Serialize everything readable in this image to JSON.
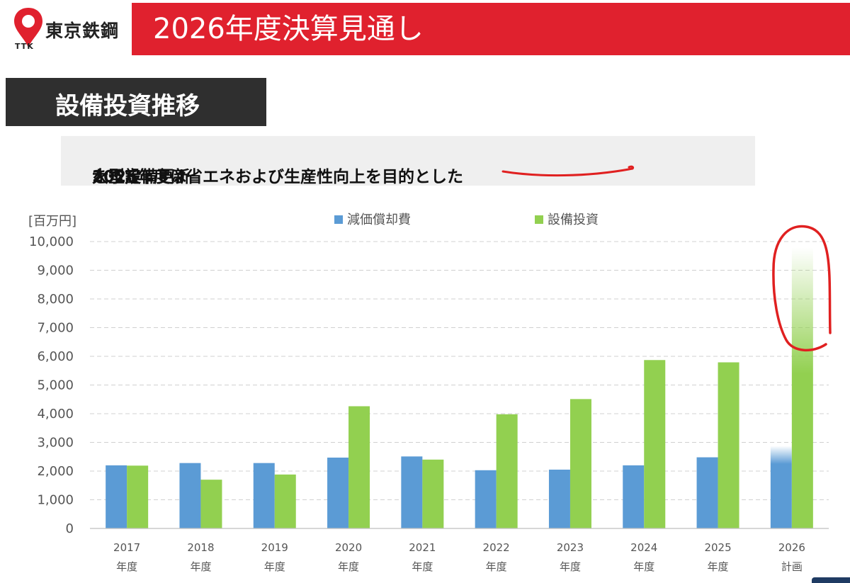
{
  "header": {
    "company_name": "東京鉄鋼",
    "company_abbr": "TTK",
    "title": "2026年度決算見通し"
  },
  "section": {
    "tag": "設備投資推移"
  },
  "callout": {
    "text_before": "2026年度は省エネおよび生産性向上を目的とした",
    "text_emphasis": "大型設備更新",
    "text_after": "を予定"
  },
  "colors": {
    "brand_red": "#e0212e",
    "depreciation_blue": "#5b9bd5",
    "capex_green": "#92d050",
    "annotation_red": "#e02020"
  },
  "chart_data": {
    "type": "bar",
    "ylabel": "[百万円]",
    "ylim": [
      0,
      10000
    ],
    "yticks": [
      "0",
      "1,000",
      "2,000",
      "3,000",
      "4,000",
      "5,000",
      "6,000",
      "7,000",
      "8,000",
      "9,000",
      "10,000"
    ],
    "grid": true,
    "legend_position": "top",
    "categories": [
      {
        "year": "2017",
        "sub": "年度"
      },
      {
        "year": "2018",
        "sub": "年度"
      },
      {
        "year": "2019",
        "sub": "年度"
      },
      {
        "year": "2020",
        "sub": "年度"
      },
      {
        "year": "2021",
        "sub": "年度"
      },
      {
        "year": "2022",
        "sub": "年度"
      },
      {
        "year": "2023",
        "sub": "年度"
      },
      {
        "year": "2024",
        "sub": "年度"
      },
      {
        "year": "2025",
        "sub": "年度"
      },
      {
        "year": "2026",
        "sub": "計画"
      }
    ],
    "series": [
      {
        "name": "減価償却費",
        "color": "#5b9bd5",
        "values": [
          2200,
          2280,
          2280,
          2470,
          2510,
          2030,
          2050,
          2200,
          2480,
          2880
        ]
      },
      {
        "name": "設備投資",
        "color": "#92d050",
        "values": [
          2190,
          1700,
          1880,
          4260,
          2400,
          3980,
          4510,
          5870,
          5790,
          9800
        ]
      }
    ],
    "faded_last_category": true
  }
}
